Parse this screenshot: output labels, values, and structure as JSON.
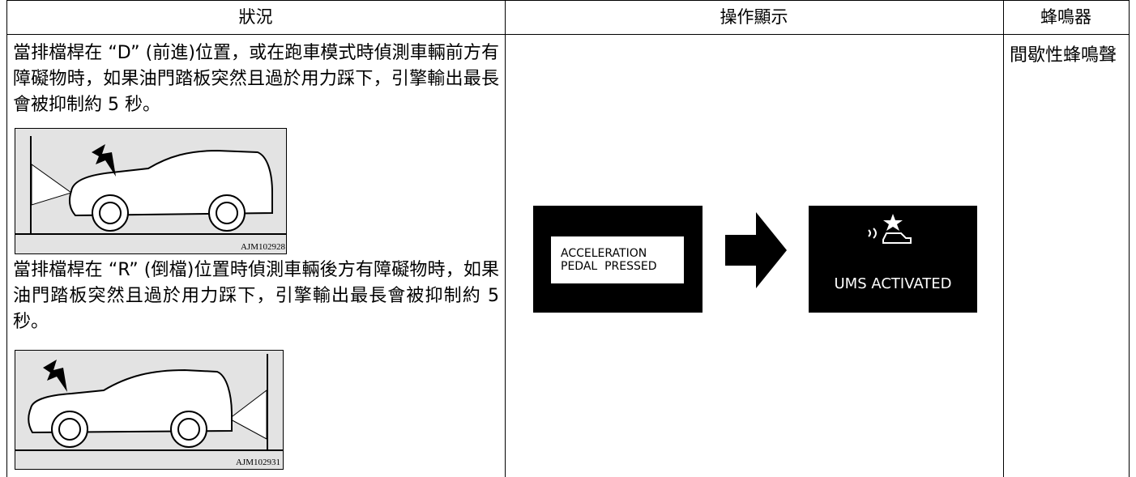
{
  "table": {
    "header": [
      "狀況",
      "操作顯示",
      "蜂鳴器"
    ],
    "condition": {
      "paragraphs": [
        "當排檔桿在 “D” (前進)位置，或在跑車模式時偵測車輛前方有障礙物時，如果油門踏板突然且過於用力踩下，引擎輸出最長會被抑制約 5 秒。",
        "當排檔桿在 “R” (倒檔)位置時偵測車輛後方有障礙物時，如果油門踏板突然且過於用力踩下，引擎輸出最長會被抑制約 5 秒。"
      ],
      "image_codes": [
        "AJM102928",
        "AJM102931"
      ]
    },
    "display": {
      "first_screen": [
        "ACCELERATION",
        "PEDAL  PRESSED"
      ],
      "second_screen": "UMS ACTIVATED"
    },
    "buzzer": "間歇性蜂鳴聲"
  }
}
